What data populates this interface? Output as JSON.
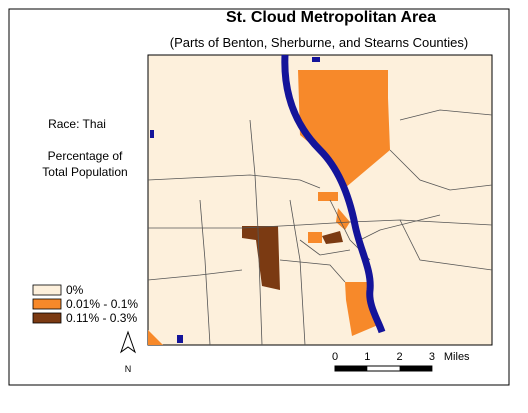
{
  "header": {
    "title": "St. Cloud Metropolitan Area",
    "subtitle": "(Parts of Benton, Sherburne, and Stearns Counties)"
  },
  "legend": {
    "variable": "Race: Thai",
    "measure_line1": "Percentage of",
    "measure_line2": "Total Population",
    "classes": [
      {
        "label": "0%",
        "color": "#fdf0dc"
      },
      {
        "label": "0.01% - 0.1%",
        "color": "#f7892a"
      },
      {
        "label": "0.11% - 0.3%",
        "color": "#7b3a12"
      }
    ]
  },
  "scale": {
    "ticks": [
      0,
      1,
      2,
      3
    ],
    "unit": "Miles"
  },
  "north": "N"
}
